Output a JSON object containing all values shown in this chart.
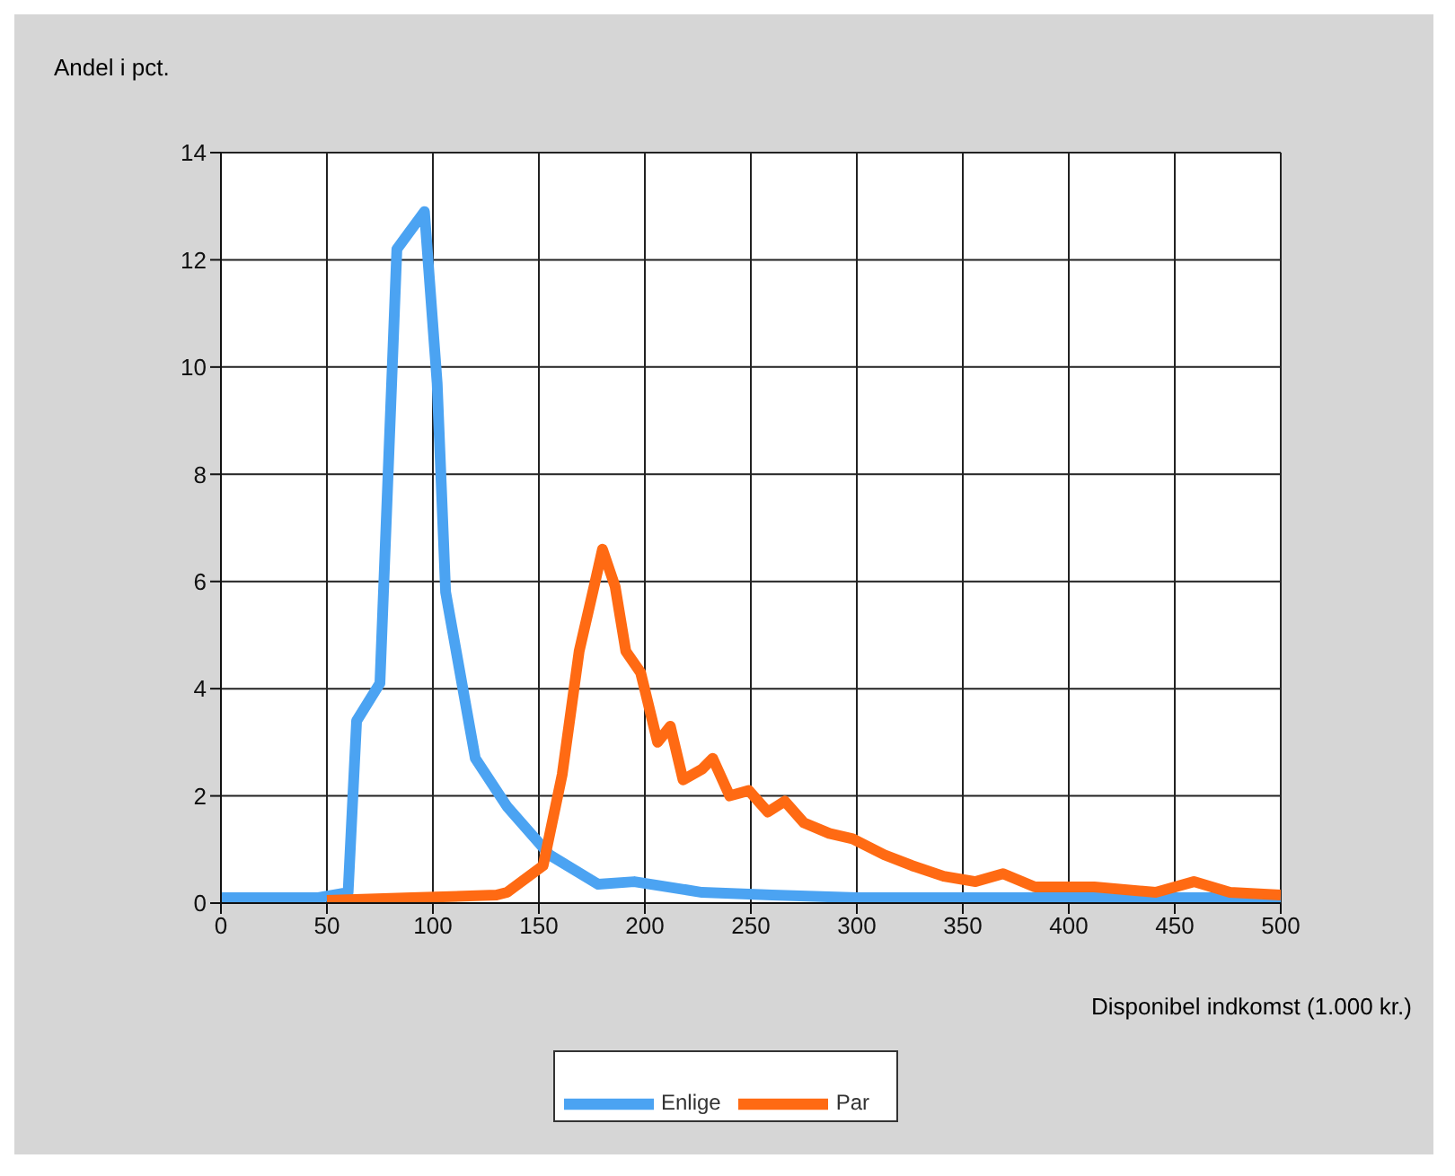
{
  "chart_data": {
    "type": "line",
    "xlabel": "Disponibel indkomst (1.000 kr.)",
    "ylabel": "Andel i pct.",
    "xlim": [
      0,
      500
    ],
    "xticks": [
      0,
      50,
      100,
      150,
      200,
      250,
      300,
      350,
      400,
      450,
      500
    ],
    "ylim": [
      0,
      14
    ],
    "yticks": [
      0,
      2,
      4,
      6,
      8,
      10,
      12,
      14
    ],
    "grid": true,
    "legend": "bottom",
    "marker": "none",
    "line_style": "solid",
    "series": [
      {
        "name": "Enlige",
        "color": "#4ba3f2",
        "x": [
          0,
          46,
          60,
          64,
          75,
          83,
          96,
          102,
          106,
          120,
          135,
          155,
          178,
          195,
          227,
          260,
          300,
          400,
          500
        ],
        "values": [
          0.1,
          0.1,
          0.2,
          3.4,
          4.1,
          12.2,
          12.9,
          9.7,
          5.8,
          2.7,
          1.8,
          0.9,
          0.35,
          0.4,
          0.2,
          0.15,
          0.1,
          0.1,
          0.1
        ]
      },
      {
        "name": "Par",
        "color": "#ff6a13",
        "x": [
          50,
          90,
          130,
          135,
          152,
          161,
          169,
          176,
          180,
          186,
          191,
          198,
          206,
          212,
          218,
          227,
          232,
          240,
          249,
          258,
          266,
          275,
          287,
          298,
          313,
          326,
          341,
          356,
          369,
          384,
          412,
          441,
          459,
          476,
          500
        ],
        "values": [
          0.05,
          0.1,
          0.15,
          0.2,
          0.7,
          2.4,
          4.7,
          5.9,
          6.6,
          5.9,
          4.7,
          4.3,
          3.0,
          3.3,
          2.3,
          2.5,
          2.7,
          2.0,
          2.1,
          1.7,
          1.9,
          1.5,
          1.3,
          1.2,
          0.9,
          0.7,
          0.5,
          0.4,
          0.55,
          0.3,
          0.3,
          0.2,
          0.4,
          0.2,
          0.15
        ]
      }
    ]
  }
}
